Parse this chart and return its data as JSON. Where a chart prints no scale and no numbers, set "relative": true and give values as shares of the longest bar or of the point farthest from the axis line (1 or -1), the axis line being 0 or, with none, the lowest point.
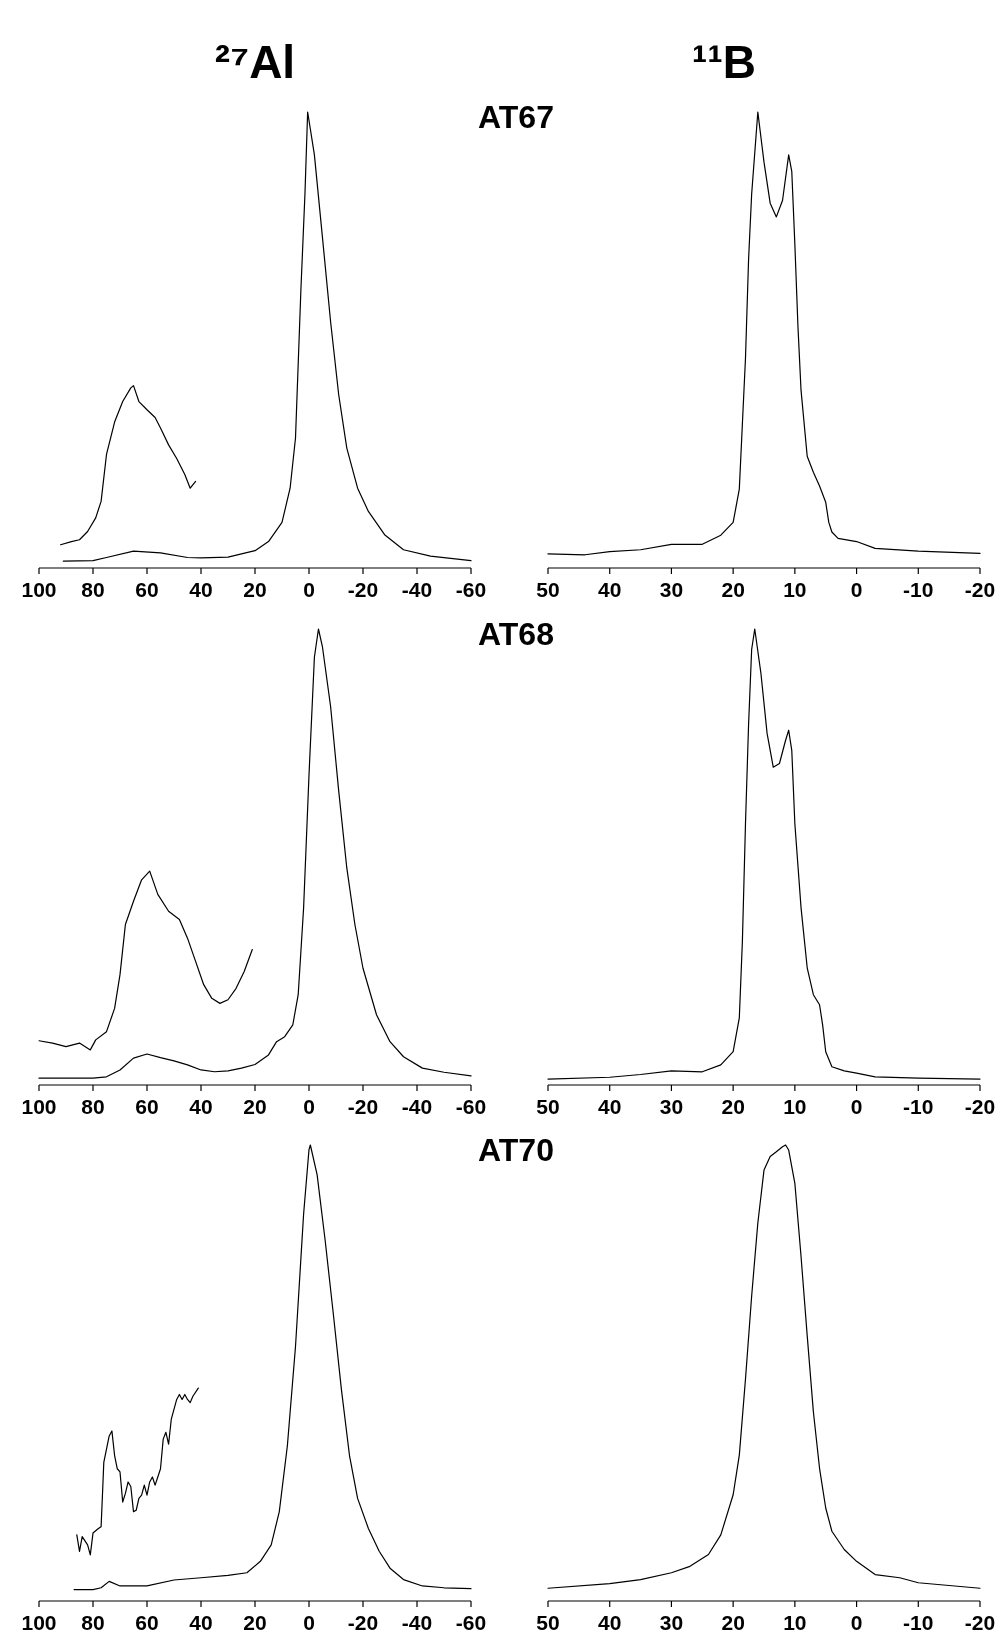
{
  "chart_data": [
    {
      "type": "line",
      "title": "²⁷Al",
      "subtitle": "AT67",
      "relative": true,
      "xlim": [
        100,
        -60
      ],
      "xticks": [
        100,
        80,
        60,
        40,
        20,
        0,
        -20,
        -40,
        -60
      ],
      "series": [
        {
          "color": "#000000",
          "x": [
            91,
            80,
            75,
            65,
            55,
            45,
            40,
            30,
            20,
            15,
            10,
            7,
            5,
            3,
            1.5,
            0.5,
            -2,
            -5,
            -8,
            -11,
            -14,
            -18,
            -22,
            -28,
            -35,
            -45,
            -60
          ],
          "values": [
            0.015,
            0.016,
            0.023,
            0.037,
            0.033,
            0.023,
            0.022,
            0.024,
            0.038,
            0.058,
            0.1,
            0.175,
            0.285,
            0.61,
            0.82,
            1.0,
            0.906,
            0.724,
            0.54,
            0.38,
            0.263,
            0.175,
            0.124,
            0.073,
            0.04,
            0.026,
            0.016
          ]
        },
        {
          "color": "#000000",
          "x": [
            92,
            88,
            85,
            82,
            79,
            77,
            75,
            72,
            69,
            66,
            65,
            63,
            60,
            57,
            55,
            52,
            49,
            46,
            44,
            42
          ],
          "values": [
            0.051,
            0.058,
            0.062,
            0.08,
            0.11,
            0.146,
            0.249,
            0.32,
            0.365,
            0.395,
            0.4,
            0.365,
            0.347,
            0.33,
            0.307,
            0.27,
            0.24,
            0.205,
            0.175,
            0.19
          ]
        }
      ]
    },
    {
      "type": "line",
      "title": "¹¹B",
      "relative": true,
      "xlim": [
        50,
        -20
      ],
      "xticks": [
        50,
        40,
        30,
        20,
        10,
        0,
        -10,
        -20
      ],
      "series": [
        {
          "color": "#000000",
          "x": [
            50,
            44,
            40,
            35,
            30,
            25,
            22,
            20,
            19,
            18.5,
            18,
            17.5,
            17,
            16,
            15,
            14,
            13,
            12,
            11,
            10.5,
            10,
            9.5,
            9,
            8,
            7,
            6,
            5,
            4.5,
            4,
            3,
            0,
            -3,
            -10,
            -20
          ],
          "values": [
            0.031,
            0.029,
            0.036,
            0.04,
            0.052,
            0.052,
            0.072,
            0.1,
            0.173,
            0.317,
            0.46,
            0.676,
            0.82,
            1.0,
            0.89,
            0.8,
            0.77,
            0.806,
            0.906,
            0.87,
            0.71,
            0.53,
            0.39,
            0.245,
            0.21,
            0.18,
            0.144,
            0.1,
            0.079,
            0.065,
            0.058,
            0.043,
            0.037,
            0.032
          ]
        }
      ]
    },
    {
      "type": "line",
      "subtitle": "AT68",
      "relative": true,
      "xlim": [
        100,
        -60
      ],
      "xticks": [
        100,
        80,
        60,
        40,
        20,
        0,
        -20,
        -40,
        -60
      ],
      "series": [
        {
          "color": "#000000",
          "x": [
            100,
            90,
            80,
            75,
            70,
            65,
            60,
            55,
            50,
            45,
            40,
            35,
            30,
            25,
            20,
            15,
            12,
            9,
            6,
            4,
            2,
            0,
            -2,
            -3.5,
            -5,
            -8,
            -11,
            -14,
            -17,
            -20,
            -25,
            -30,
            -35,
            -42,
            -50,
            -60
          ],
          "values": [
            0.015,
            0.015,
            0.015,
            0.018,
            0.033,
            0.059,
            0.068,
            0.06,
            0.053,
            0.044,
            0.033,
            0.029,
            0.031,
            0.037,
            0.045,
            0.066,
            0.095,
            0.106,
            0.132,
            0.198,
            0.388,
            0.68,
            0.938,
            1.0,
            0.96,
            0.83,
            0.645,
            0.476,
            0.352,
            0.256,
            0.154,
            0.095,
            0.062,
            0.037,
            0.028,
            0.02
          ]
        },
        {
          "color": "#000000",
          "x": [
            100,
            95,
            90,
            85,
            81,
            79,
            75,
            72,
            70,
            68,
            65,
            62,
            59,
            56,
            52,
            48,
            45,
            42,
            39,
            36,
            33,
            30,
            27,
            24,
            21
          ],
          "values": [
            0.097,
            0.092,
            0.084,
            0.092,
            0.077,
            0.099,
            0.117,
            0.168,
            0.242,
            0.352,
            0.403,
            0.45,
            0.469,
            0.418,
            0.381,
            0.363,
            0.322,
            0.271,
            0.22,
            0.19,
            0.179,
            0.187,
            0.212,
            0.249,
            0.297
          ]
        }
      ]
    },
    {
      "type": "line",
      "relative": true,
      "xlim": [
        50,
        -20
      ],
      "xticks": [
        50,
        40,
        30,
        20,
        10,
        0,
        -10,
        -20
      ],
      "series": [
        {
          "color": "#000000",
          "x": [
            50,
            40,
            35,
            30,
            25,
            22,
            20,
            19,
            18.5,
            18,
            17.5,
            17,
            16.5,
            15.5,
            14.5,
            13.5,
            12.5,
            11.5,
            11,
            10.5,
            10,
            9,
            8,
            7,
            6,
            5.5,
            5,
            4,
            2,
            0,
            -3,
            -10,
            -20
          ],
          "values": [
            0.013,
            0.017,
            0.023,
            0.031,
            0.029,
            0.044,
            0.073,
            0.147,
            0.316,
            0.573,
            0.79,
            0.955,
            1.0,
            0.903,
            0.771,
            0.697,
            0.705,
            0.756,
            0.778,
            0.734,
            0.573,
            0.389,
            0.257,
            0.198,
            0.176,
            0.132,
            0.073,
            0.04,
            0.031,
            0.026,
            0.018,
            0.015,
            0.013
          ]
        }
      ]
    },
    {
      "type": "line",
      "subtitle": "AT70",
      "relative": true,
      "xlim": [
        100,
        -60
      ],
      "xticks": [
        100,
        80,
        60,
        40,
        20,
        0,
        -20,
        -40,
        -60
      ],
      "series": [
        {
          "color": "#000000",
          "x": [
            87,
            80,
            77,
            74,
            70,
            60,
            50,
            40,
            30,
            23,
            18,
            14,
            11,
            8,
            5,
            2,
            0,
            -0.5,
            -3,
            -6,
            -9,
            -12,
            -15,
            -18,
            -22,
            -26,
            -30,
            -35,
            -42,
            -50,
            -60
          ],
          "values": [
            0.025,
            0.025,
            0.029,
            0.043,
            0.033,
            0.033,
            0.046,
            0.051,
            0.056,
            0.062,
            0.087,
            0.123,
            0.196,
            0.341,
            0.558,
            0.848,
            0.99,
            1.0,
            0.935,
            0.79,
            0.63,
            0.464,
            0.319,
            0.225,
            0.159,
            0.109,
            0.072,
            0.047,
            0.033,
            0.029,
            0.027
          ]
        },
        {
          "color": "#000000",
          "x": [
            86,
            85,
            84,
            82,
            81,
            80,
            78,
            77,
            76.5,
            76,
            74,
            73,
            72,
            71,
            70,
            69,
            68,
            67,
            66,
            65,
            64,
            63,
            62,
            61,
            60,
            59,
            58,
            57,
            56,
            55,
            54,
            53,
            52,
            51,
            49,
            48,
            47,
            46,
            45,
            44,
            43,
            41
          ],
          "values": [
            0.145,
            0.109,
            0.141,
            0.123,
            0.101,
            0.149,
            0.159,
            0.163,
            0.232,
            0.304,
            0.362,
            0.373,
            0.319,
            0.29,
            0.283,
            0.217,
            0.236,
            0.261,
            0.251,
            0.196,
            0.199,
            0.225,
            0.232,
            0.254,
            0.232,
            0.261,
            0.272,
            0.254,
            0.272,
            0.29,
            0.355,
            0.37,
            0.344,
            0.399,
            0.442,
            0.453,
            0.442,
            0.453,
            0.442,
            0.435,
            0.449,
            0.467
          ]
        }
      ]
    },
    {
      "type": "line",
      "relative": true,
      "xlim": [
        50,
        -20
      ],
      "xticks": [
        50,
        40,
        30,
        20,
        10,
        0,
        -10,
        -20
      ],
      "series": [
        {
          "color": "#000000",
          "x": [
            50,
            40,
            35,
            30,
            27,
            24,
            22,
            20,
            19,
            18,
            17,
            16,
            15,
            14,
            13,
            12,
            11.5,
            11,
            10,
            9,
            8,
            7,
            6,
            5,
            4,
            2,
            0,
            -3,
            -7,
            -10,
            -15,
            -20
          ],
          "values": [
            0.028,
            0.038,
            0.047,
            0.062,
            0.076,
            0.102,
            0.145,
            0.233,
            0.32,
            0.487,
            0.669,
            0.829,
            0.945,
            0.975,
            0.985,
            0.996,
            1.0,
            0.989,
            0.916,
            0.756,
            0.582,
            0.415,
            0.291,
            0.204,
            0.153,
            0.113,
            0.087,
            0.058,
            0.051,
            0.04,
            0.034,
            0.028
          ]
        }
      ]
    }
  ]
}
